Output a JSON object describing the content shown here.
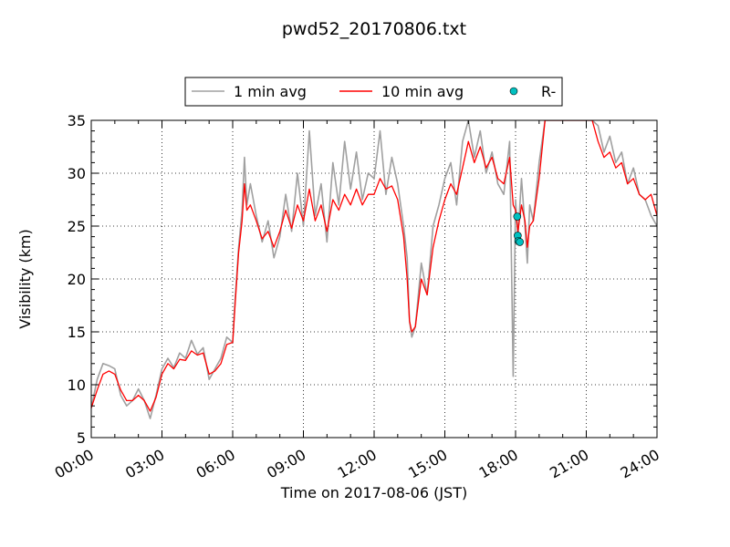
{
  "chart_data": {
    "type": "line",
    "title": "pwd52_20170806.txt",
    "xlabel": "Time on 2017-08-06 (JST)",
    "ylabel": "Visibility (km)",
    "xlim": [
      0,
      24
    ],
    "ylim": [
      5,
      35
    ],
    "x_ticks": [
      0,
      3,
      6,
      9,
      12,
      15,
      18,
      21,
      24
    ],
    "x_tick_labels": [
      "00:00",
      "03:00",
      "06:00",
      "09:00",
      "12:00",
      "15:00",
      "18:00",
      "21:00",
      "24:00"
    ],
    "y_ticks": [
      5,
      10,
      15,
      20,
      25,
      30,
      35
    ],
    "y_tick_labels": [
      "5",
      "10",
      "15",
      "20",
      "25",
      "30",
      "35"
    ],
    "grid": true,
    "legend_position": "top-center",
    "series": [
      {
        "name": "1 min avg",
        "color": "#a0a0a0",
        "x": [
          0.0,
          0.25,
          0.5,
          0.75,
          1.0,
          1.25,
          1.5,
          1.75,
          2.0,
          2.25,
          2.5,
          2.75,
          3.0,
          3.25,
          3.5,
          3.75,
          4.0,
          4.25,
          4.5,
          4.75,
          5.0,
          5.25,
          5.5,
          5.75,
          6.0,
          6.1,
          6.25,
          6.4,
          6.5,
          6.6,
          6.75,
          7.0,
          7.25,
          7.5,
          7.75,
          8.0,
          8.25,
          8.5,
          8.75,
          9.0,
          9.25,
          9.5,
          9.75,
          10.0,
          10.25,
          10.5,
          10.75,
          11.0,
          11.25,
          11.5,
          11.75,
          12.0,
          12.25,
          12.5,
          12.75,
          13.0,
          13.25,
          13.4,
          13.5,
          13.6,
          13.75,
          14.0,
          14.25,
          14.5,
          14.75,
          15.0,
          15.25,
          15.5,
          15.75,
          16.0,
          16.25,
          16.5,
          16.75,
          17.0,
          17.25,
          17.5,
          17.75,
          17.9,
          18.0,
          18.1,
          18.25,
          18.4,
          18.5,
          18.6,
          18.75,
          19.0,
          19.25,
          19.5,
          19.75,
          20.0,
          20.25,
          20.5,
          20.75,
          21.0,
          21.25,
          21.5,
          21.75,
          22.0,
          22.25,
          22.5,
          22.75,
          23.0,
          23.25,
          23.5,
          23.75,
          24.0
        ],
        "y": [
          7.8,
          10.5,
          12.0,
          11.8,
          11.5,
          9.0,
          8.0,
          8.5,
          9.6,
          8.5,
          6.8,
          9.0,
          11.5,
          12.5,
          11.6,
          13.0,
          12.5,
          14.2,
          12.9,
          13.5,
          10.5,
          11.5,
          12.5,
          14.5,
          14.0,
          18.0,
          23.0,
          26.5,
          31.5,
          27.0,
          29.0,
          26.0,
          23.5,
          25.5,
          22.0,
          24.0,
          28.0,
          24.5,
          30.0,
          25.0,
          34.0,
          26.0,
          29.0,
          23.5,
          31.0,
          27.0,
          33.0,
          28.5,
          32.0,
          27.5,
          30.0,
          29.5,
          34.0,
          28.0,
          31.5,
          29.0,
          25.0,
          22.0,
          16.0,
          14.5,
          15.5,
          21.5,
          18.5,
          25.0,
          27.0,
          29.5,
          31.0,
          27.0,
          33.0,
          35.0,
          31.5,
          34.0,
          30.0,
          32.0,
          29.0,
          28.0,
          33.0,
          10.8,
          27.5,
          24.0,
          29.5,
          25.0,
          21.5,
          27.0,
          25.5,
          31.0,
          35.0,
          35.0,
          35.0,
          35.0,
          35.0,
          35.0,
          35.0,
          35.0,
          35.0,
          34.5,
          32.0,
          33.5,
          31.0,
          32.0,
          29.0,
          30.5,
          28.0,
          27.5,
          26.0,
          25.0
        ]
      },
      {
        "name": "10 min avg",
        "color": "#ff0000",
        "x": [
          0.0,
          0.25,
          0.5,
          0.75,
          1.0,
          1.25,
          1.5,
          1.75,
          2.0,
          2.25,
          2.5,
          2.75,
          3.0,
          3.25,
          3.5,
          3.75,
          4.0,
          4.25,
          4.5,
          4.75,
          5.0,
          5.25,
          5.5,
          5.75,
          6.0,
          6.1,
          6.25,
          6.4,
          6.5,
          6.6,
          6.75,
          7.0,
          7.25,
          7.5,
          7.75,
          8.0,
          8.25,
          8.5,
          8.75,
          9.0,
          9.25,
          9.5,
          9.75,
          10.0,
          10.25,
          10.5,
          10.75,
          11.0,
          11.25,
          11.5,
          11.75,
          12.0,
          12.25,
          12.5,
          12.75,
          13.0,
          13.25,
          13.4,
          13.5,
          13.6,
          13.75,
          14.0,
          14.25,
          14.5,
          14.75,
          15.0,
          15.25,
          15.5,
          15.75,
          16.0,
          16.25,
          16.5,
          16.75,
          17.0,
          17.25,
          17.5,
          17.75,
          17.9,
          18.0,
          18.1,
          18.25,
          18.4,
          18.5,
          18.6,
          18.75,
          19.0,
          19.25,
          19.5,
          19.75,
          20.0,
          20.25,
          20.5,
          20.75,
          21.0,
          21.25,
          21.5,
          21.75,
          22.0,
          22.25,
          22.5,
          22.75,
          23.0,
          23.25,
          23.5,
          23.75,
          24.0
        ],
        "y": [
          7.8,
          9.5,
          11.0,
          11.3,
          11.0,
          9.5,
          8.5,
          8.5,
          9.0,
          8.5,
          7.5,
          8.8,
          11.0,
          12.0,
          11.5,
          12.4,
          12.3,
          13.2,
          12.8,
          13.0,
          11.0,
          11.3,
          12.0,
          13.8,
          14.0,
          17.5,
          22.5,
          25.5,
          29.0,
          26.5,
          27.0,
          25.5,
          23.8,
          24.5,
          23.0,
          24.5,
          26.5,
          24.8,
          27.0,
          25.5,
          28.5,
          25.5,
          27.0,
          24.5,
          27.5,
          26.5,
          28.0,
          27.0,
          28.5,
          27.0,
          28.0,
          28.0,
          29.5,
          28.5,
          28.8,
          27.5,
          24.0,
          20.0,
          16.0,
          15.0,
          15.5,
          20.0,
          18.5,
          23.0,
          25.5,
          27.5,
          29.0,
          28.0,
          30.5,
          33.0,
          31.0,
          32.5,
          30.5,
          31.5,
          29.5,
          29.0,
          31.5,
          27.0,
          26.5,
          24.5,
          27.0,
          25.5,
          23.0,
          25.0,
          25.5,
          29.5,
          35.0,
          35.0,
          35.0,
          35.0,
          35.0,
          35.0,
          35.0,
          35.0,
          35.0,
          33.0,
          31.5,
          32.0,
          30.5,
          31.0,
          29.0,
          29.5,
          28.0,
          27.5,
          28.0,
          26.0
        ]
      },
      {
        "name": "R-",
        "type": "scatter",
        "color": "#00c0c0",
        "x": [
          18.07,
          18.09,
          18.12,
          18.18
        ],
        "y": [
          25.9,
          24.1,
          23.6,
          23.5
        ]
      }
    ]
  }
}
